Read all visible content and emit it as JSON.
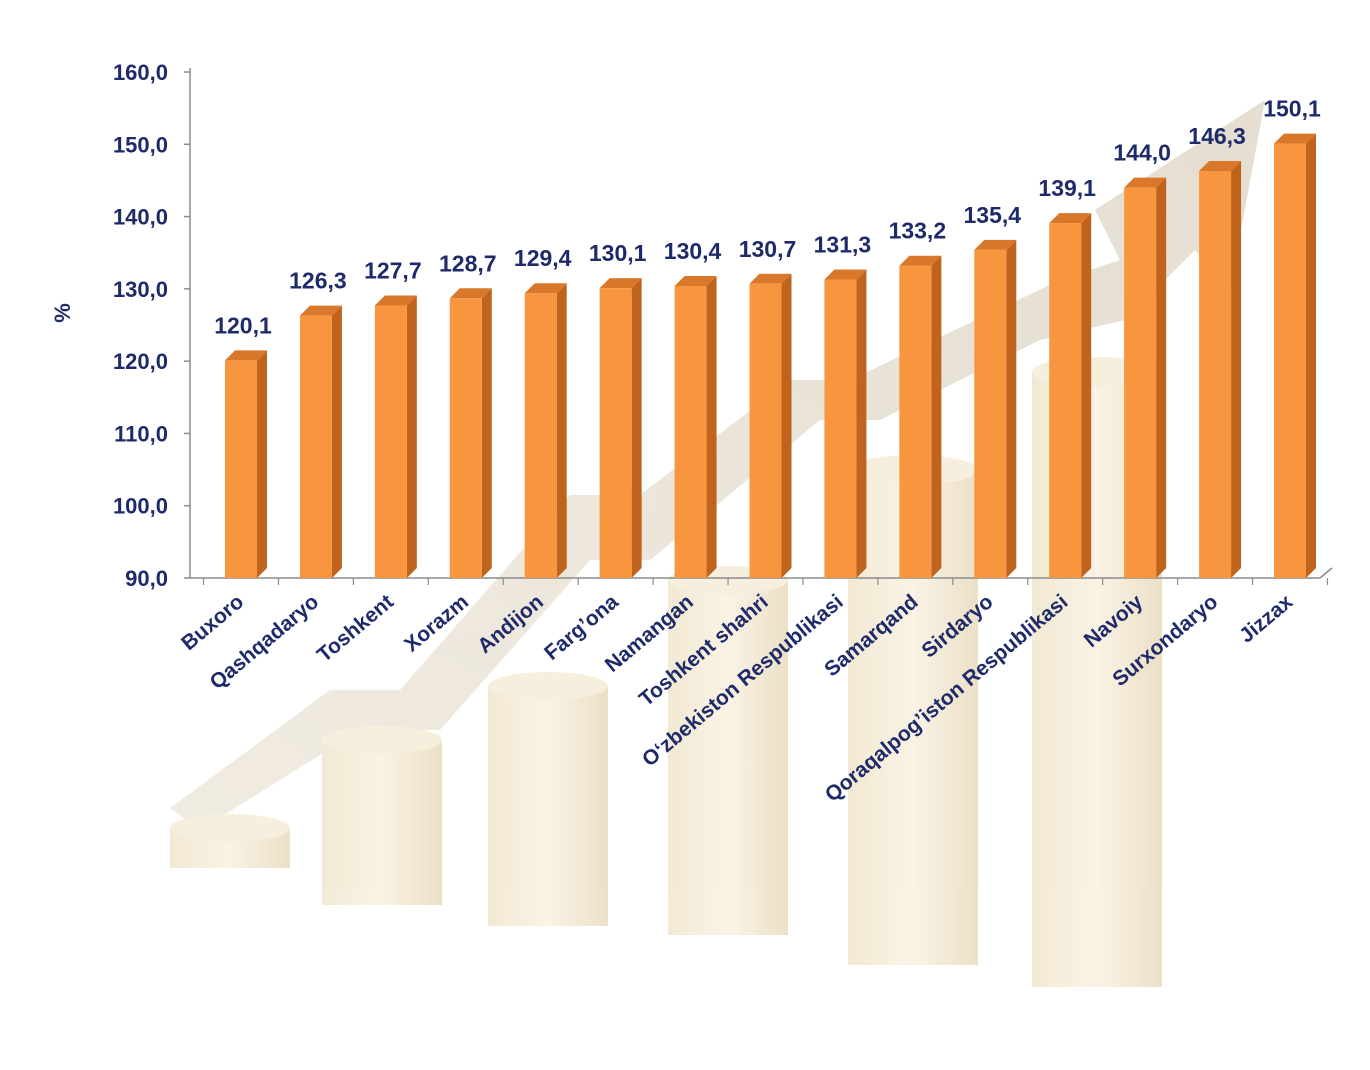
{
  "chart_data": {
    "type": "bar",
    "ylabel": "%",
    "ylim": [
      90,
      160
    ],
    "yticks": [
      "90,0",
      "100,0",
      "110,0",
      "120,0",
      "130,0",
      "140,0",
      "150,0",
      "160,0"
    ],
    "ytick_values": [
      90,
      100,
      110,
      120,
      130,
      140,
      150,
      160
    ],
    "categories": [
      "Buxoro",
      "Qashqadaryo",
      "Toshkent",
      "Xorazm",
      "Andijon",
      "Farg’ona",
      "Namangan",
      "Toshkent shahri",
      "O‘zbekiston Respublikasi",
      "Samarqand",
      "Sirdaryo",
      "Qoraqalpog’iston Respublikasi",
      "Navoiy",
      "Surxondaryo",
      "Jizzax"
    ],
    "values": [
      120.1,
      126.3,
      127.7,
      128.7,
      129.4,
      130.1,
      130.4,
      130.7,
      131.3,
      133.2,
      135.4,
      139.1,
      144.0,
      146.3,
      150.1
    ],
    "value_labels": [
      "120,1",
      "126,3",
      "127,7",
      "128,7",
      "129,4",
      "130,1",
      "130,4",
      "130,7",
      "131,3",
      "133,2",
      "135,4",
      "139,1",
      "144,0",
      "146,3",
      "150,1"
    ],
    "grid": false,
    "legend": "none",
    "colors": {
      "bar_front": "#f7963e",
      "bar_side": "#c0631c",
      "bar_top": "#d9782a",
      "text": "#1f2a6b",
      "axis": "#8c8c8c"
    }
  }
}
